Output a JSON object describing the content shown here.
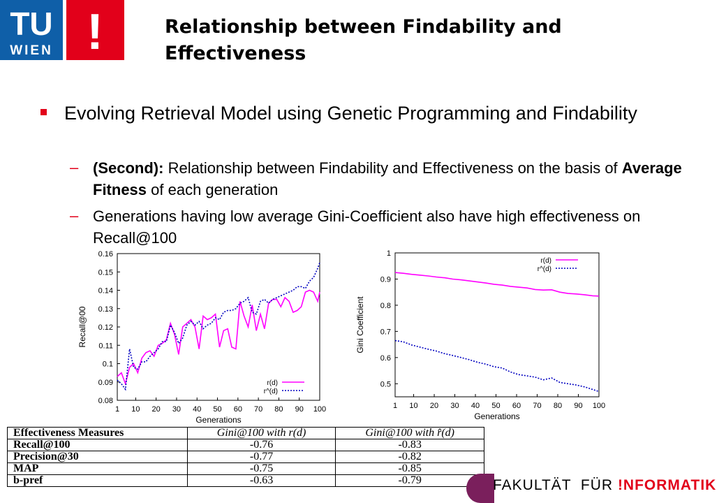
{
  "slide": {
    "title": "Relationship between Findability and Effectiveness",
    "bullet": "Evolving Retrieval Model using Genetic Programming and Findability",
    "sub1_bold": "(Second):",
    "sub1_text": " Relationship between Findability and Effectiveness on the basis of ",
    "sub1_bold2": "Average Fitness",
    "sub1_text2": " of each generation",
    "sub2_text": "Generations having low average Gini-Coefficient also have high effectiveness on Recall@100",
    "dash": "–"
  },
  "logo": {
    "tu": "TU",
    "wien": "WIEN",
    "bang": "!"
  },
  "footer": {
    "fak": "FAKULTÄT  FÜR",
    "inf": "!NFORMATIK"
  },
  "colors": {
    "red": "#e2001a",
    "blue": "#0f5fa8",
    "magenta": "#ff00ff",
    "navy": "#0000c0"
  },
  "chart_data": [
    {
      "type": "line",
      "ylabel": "Recall@00",
      "xlabel": "Generations",
      "xlim": [
        1,
        100
      ],
      "ylim": [
        0.08,
        0.16
      ],
      "xticks": [
        "1",
        "10",
        "20",
        "30",
        "40",
        "50",
        "60",
        "70",
        "80",
        "90",
        "100"
      ],
      "yticks": [
        "0.08",
        "0.09",
        "0.1",
        "0.11",
        "0.12",
        "0.13",
        "0.14",
        "0.15",
        "0.16"
      ],
      "legend_position": "bottom-right",
      "series": [
        {
          "name": "r(d)",
          "x": [
            1,
            3,
            5,
            7,
            9,
            11,
            13,
            15,
            17,
            19,
            21,
            23,
            25,
            27,
            29,
            31,
            33,
            35,
            37,
            39,
            41,
            43,
            45,
            47,
            49,
            51,
            53,
            55,
            57,
            59,
            61,
            63,
            65,
            67,
            69,
            71,
            73,
            75,
            77,
            79,
            81,
            83,
            85,
            87,
            89,
            91,
            93,
            95,
            97,
            99,
            100
          ],
          "values": [
            0.093,
            0.095,
            0.089,
            0.098,
            0.1,
            0.095,
            0.103,
            0.106,
            0.107,
            0.104,
            0.11,
            0.111,
            0.113,
            0.122,
            0.116,
            0.105,
            0.12,
            0.122,
            0.124,
            0.12,
            0.108,
            0.126,
            0.124,
            0.125,
            0.127,
            0.109,
            0.118,
            0.119,
            0.109,
            0.108,
            0.134,
            0.126,
            0.12,
            0.132,
            0.118,
            0.127,
            0.119,
            0.133,
            0.135,
            0.135,
            0.131,
            0.136,
            0.134,
            0.128,
            0.129,
            0.131,
            0.139,
            0.14,
            0.139,
            0.134,
            0.139
          ]
        },
        {
          "name": "r^(d)",
          "x": [
            1,
            3,
            5,
            7,
            9,
            11,
            13,
            15,
            17,
            19,
            21,
            23,
            25,
            27,
            29,
            31,
            33,
            35,
            37,
            39,
            41,
            43,
            45,
            47,
            49,
            51,
            53,
            55,
            57,
            59,
            61,
            63,
            65,
            67,
            69,
            71,
            73,
            75,
            77,
            79,
            81,
            83,
            85,
            87,
            89,
            91,
            93,
            95,
            97,
            99,
            100
          ],
          "values": [
            0.091,
            0.089,
            0.086,
            0.108,
            0.098,
            0.097,
            0.101,
            0.101,
            0.104,
            0.106,
            0.108,
            0.112,
            0.112,
            0.121,
            0.117,
            0.111,
            0.114,
            0.121,
            0.123,
            0.121,
            0.123,
            0.119,
            0.121,
            0.122,
            0.125,
            0.124,
            0.128,
            0.129,
            0.129,
            0.13,
            0.133,
            0.134,
            0.136,
            0.128,
            0.127,
            0.134,
            0.135,
            0.133,
            0.135,
            0.136,
            0.137,
            0.138,
            0.139,
            0.14,
            0.142,
            0.142,
            0.141,
            0.145,
            0.147,
            0.152,
            0.155
          ]
        }
      ]
    },
    {
      "type": "line",
      "ylabel": "Gini Coefficient",
      "xlabel": "Generations",
      "xlim": [
        1,
        100
      ],
      "ylim": [
        0.45,
        1
      ],
      "xticks": [
        "1",
        "10",
        "20",
        "30",
        "40",
        "50",
        "60",
        "70",
        "80",
        "90",
        "100"
      ],
      "yticks": [
        "0.5",
        "0.6",
        "0.7",
        "0.8",
        "0.9",
        "1"
      ],
      "legend_position": "top-right",
      "series": [
        {
          "name": "r(d)",
          "x": [
            1,
            5,
            9,
            13,
            17,
            21,
            25,
            29,
            33,
            37,
            41,
            45,
            49,
            53,
            57,
            61,
            65,
            69,
            73,
            77,
            81,
            85,
            89,
            93,
            97,
            100
          ],
          "values": [
            0.925,
            0.922,
            0.918,
            0.915,
            0.912,
            0.908,
            0.905,
            0.9,
            0.897,
            0.893,
            0.889,
            0.885,
            0.88,
            0.877,
            0.872,
            0.869,
            0.866,
            0.86,
            0.858,
            0.859,
            0.85,
            0.845,
            0.843,
            0.84,
            0.836,
            0.835
          ]
        },
        {
          "name": "r^(d)",
          "x": [
            1,
            5,
            9,
            13,
            17,
            21,
            25,
            29,
            33,
            37,
            41,
            45,
            49,
            53,
            57,
            61,
            65,
            69,
            73,
            77,
            81,
            85,
            89,
            93,
            97,
            100
          ],
          "values": [
            0.665,
            0.66,
            0.648,
            0.64,
            0.632,
            0.625,
            0.615,
            0.608,
            0.6,
            0.592,
            0.582,
            0.575,
            0.565,
            0.56,
            0.545,
            0.535,
            0.53,
            0.525,
            0.515,
            0.522,
            0.505,
            0.5,
            0.495,
            0.488,
            0.478,
            0.47
          ]
        }
      ]
    }
  ],
  "table": {
    "headers": [
      "Effectiveness Measures",
      "Gini@100 with r(d)",
      "Gini@100 with r̂(d)"
    ],
    "rows": [
      [
        "Recall@100",
        "-0.76",
        "-0.83"
      ],
      [
        "Precision@30",
        "-0.77",
        "-0.82"
      ],
      [
        "MAP",
        "-0.75",
        "-0.85"
      ],
      [
        "b-pref",
        "-0.63",
        "-0.79"
      ]
    ]
  }
}
